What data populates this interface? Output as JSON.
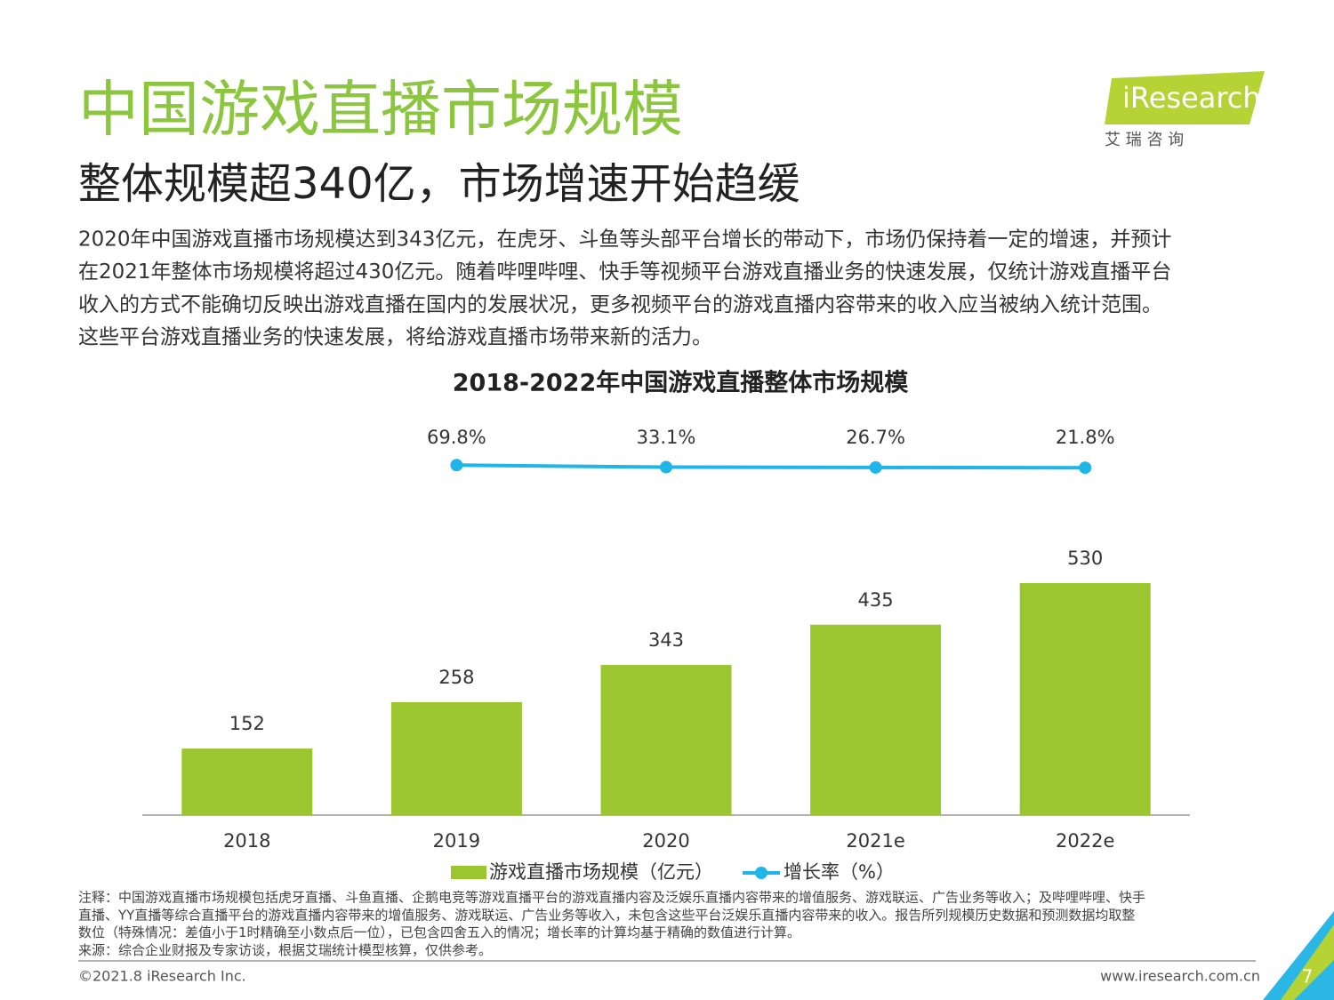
{
  "header": {
    "title": "中国游戏直播市场规模",
    "subtitle": "整体规模超340亿，市场增速开始趋缓",
    "paragraph": [
      "2020年中国游戏直播市场规模达到343亿元，在虎牙、斗鱼等头部平台增长的带动下，市场仍保持着一定的增速，并预计",
      "在2021年整体市场规模将超过430亿元。随着哔哩哔哩、快手等视频平台游戏直播业务的快速发展，仅统计游戏直播平台",
      "收入的方式不能确切反映出游戏直播在国内的发展状况，更多视频平台的游戏直播内容带来的收入应当被纳入统计范围。",
      "这些平台游戏直播业务的快速发展，将给游戏直播市场带来新的活力。"
    ]
  },
  "logo": {
    "name": "iResearch",
    "cn": "艾 瑞 咨 询"
  },
  "chart_data": {
    "type": "bar",
    "title": "2018-2022年中国游戏直播整体市场规模",
    "categories": [
      "2018",
      "2019",
      "2020",
      "2021e",
      "2022e"
    ],
    "series": [
      {
        "name": "游戏直播市场规模（亿元）",
        "color": "#9bc62f",
        "values": [
          152,
          258,
          343,
          435,
          530
        ]
      },
      {
        "name": "增长率（%）",
        "type": "line",
        "axis": "y2",
        "color": "#1fb5e8",
        "values": [
          null,
          69.8,
          33.1,
          26.7,
          21.8
        ],
        "value_labels": [
          null,
          "69.8%",
          "33.1%",
          "26.7%",
          "21.8%"
        ]
      }
    ]
  },
  "notes": [
    "注释：中国游戏直播市场规模包括虎牙直播、斗鱼直播、企鹅电竞等游戏直播平台的游戏直播内容及泛娱乐直播内容带来的增值服务、游戏联运、广告业务等收入；及哔哩哔哩、快手",
    "直播、YY直播等综合直播平台的游戏直播内容带来的增值服务、游戏联运、广告业务等收入，未包含这些平台泛娱乐直播内容带来的收入。报告所列规模历史数据和预测数据均取整",
    "数位（特殊情况：差值小于1时精确至小数点后一位），已包含四舍五入的情况；增长率的计算均基于精确的数值进行计算。",
    "来源：综合企业财报及专家访谈，根据艾瑞统计模型核算，仅供参考。"
  ],
  "footer": {
    "copyright": "©2021.8 iResearch Inc.",
    "website": "www.iresearch.com.cn",
    "page": "7"
  }
}
